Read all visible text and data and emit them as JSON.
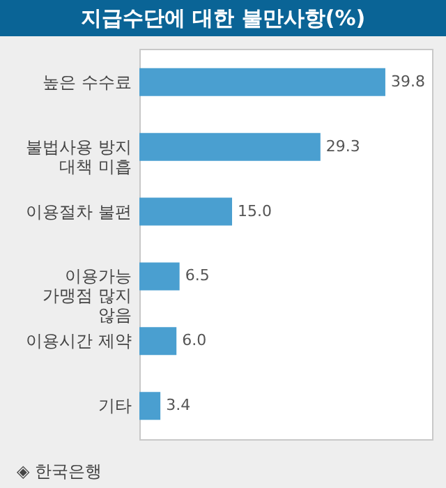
{
  "chart_data": {
    "type": "bar",
    "orientation": "horizontal",
    "title": "지급수단에 대한 불만사항(%)",
    "categories": [
      "높은 수수료",
      "불법사용 방지 대책 미흡",
      "이용절차 불편",
      "이용가능 가맹점 많지 않음",
      "이용시간 제약",
      "기타"
    ],
    "values": [
      39.8,
      29.3,
      15.0,
      6.5,
      6.0,
      3.4
    ],
    "colors": [
      "#4a9fd0",
      "#4a9fd0",
      "#4a9fd0",
      "#4a9fd0",
      "#4a9fd0",
      "#4a9fd0"
    ],
    "value_labels": [
      "39.8",
      "29.3",
      "15.0",
      "6.5",
      "6.0",
      "3.4"
    ],
    "annotations": [
      "◈ 한국은행"
    ]
  }
}
